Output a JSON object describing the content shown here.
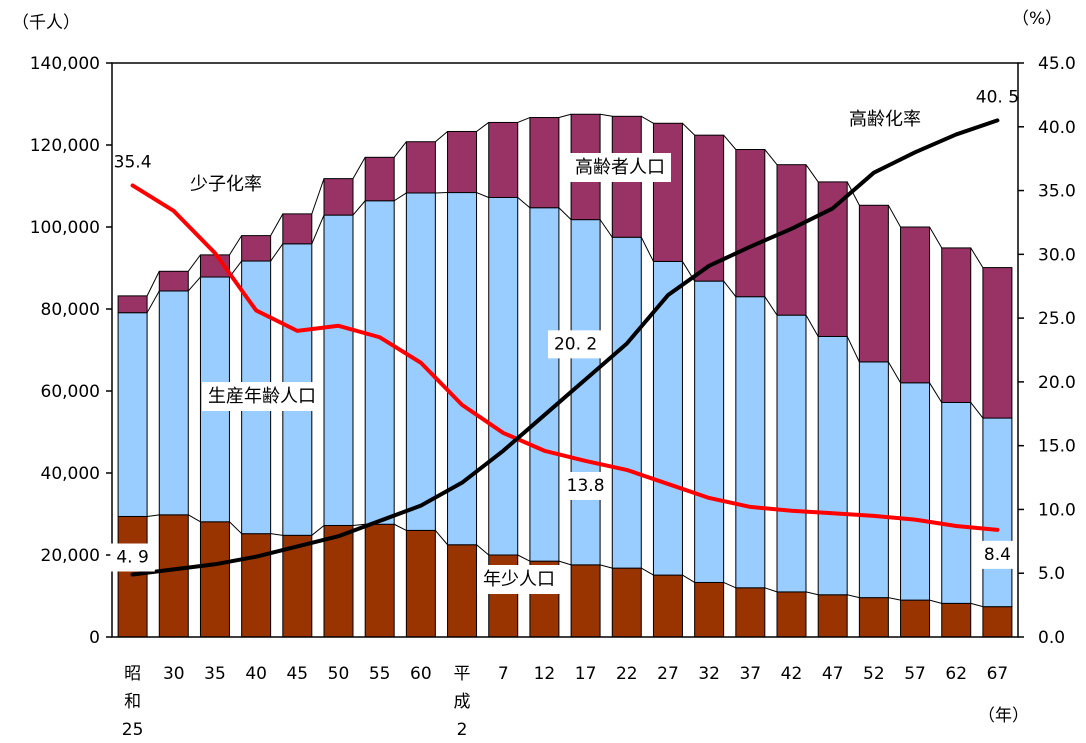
{
  "chart_data": {
    "type": "bar",
    "stacked": true,
    "left_axis": {
      "unit": "（千人）",
      "ylim": [
        0,
        140000
      ],
      "ticks": [
        "0",
        "20,000",
        "40,000",
        "60,000",
        "80,000",
        "100,000",
        "120,000",
        "140,000"
      ]
    },
    "right_axis": {
      "unit": "（%）",
      "ylim": [
        0,
        45
      ],
      "ticks": [
        "0.0",
        "5.0",
        "10.0",
        "15.0",
        "20.0",
        "25.0",
        "30.0",
        "35.0",
        "40.0",
        "45.0"
      ]
    },
    "x_unit": "（年）",
    "categories": [
      [
        "昭",
        "和",
        "25"
      ],
      [
        "30"
      ],
      [
        "35"
      ],
      [
        "40"
      ],
      [
        "45"
      ],
      [
        "50"
      ],
      [
        "55"
      ],
      [
        "60"
      ],
      [
        "平",
        "成",
        "2"
      ],
      [
        "7"
      ],
      [
        "12"
      ],
      [
        "17"
      ],
      [
        "22"
      ],
      [
        "27"
      ],
      [
        "32"
      ],
      [
        "37"
      ],
      [
        "42"
      ],
      [
        "47"
      ],
      [
        "52"
      ],
      [
        "57"
      ],
      [
        "62"
      ],
      [
        "67"
      ]
    ],
    "series": [
      {
        "name": "年少人口",
        "kind": "bar",
        "color": "#993300",
        "values": [
          29400,
          29800,
          28100,
          25200,
          24800,
          27200,
          27500,
          26000,
          22500,
          20000,
          18500,
          17600,
          16800,
          15100,
          13300,
          12000,
          11000,
          10300,
          9600,
          9000,
          8200,
          7400
        ]
      },
      {
        "name": "生産年齢人口",
        "kind": "bar",
        "color": "#99CCFF",
        "values": [
          49700,
          54600,
          59700,
          66500,
          71100,
          75700,
          78900,
          82300,
          85900,
          87200,
          86200,
          84200,
          80700,
          76500,
          73500,
          71000,
          67500,
          63000,
          57500,
          53000,
          49000,
          46000
        ]
      },
      {
        "name": "高齢者人口",
        "kind": "bar",
        "color": "#993366",
        "values": [
          4100,
          4800,
          5400,
          6200,
          7300,
          8900,
          10600,
          12500,
          14900,
          18300,
          22000,
          25700,
          29500,
          33700,
          35600,
          35900,
          36700,
          37700,
          38200,
          38000,
          37700,
          36700
        ]
      },
      {
        "name": "少子化率",
        "kind": "line",
        "axis": "right",
        "color": "#FF0000",
        "values": [
          35.4,
          33.4,
          30.1,
          25.6,
          24.0,
          24.4,
          23.5,
          21.5,
          18.2,
          16.0,
          14.6,
          13.8,
          13.1,
          12.0,
          10.9,
          10.2,
          9.9,
          9.7,
          9.5,
          9.2,
          8.7,
          8.4
        ]
      },
      {
        "name": "高齢化率",
        "kind": "line",
        "axis": "right",
        "color": "#000000",
        "values": [
          4.9,
          5.3,
          5.7,
          6.3,
          7.1,
          7.9,
          9.1,
          10.3,
          12.1,
          14.6,
          17.4,
          20.2,
          23.0,
          26.8,
          29.1,
          30.6,
          32.0,
          33.6,
          36.4,
          38.0,
          39.4,
          40.5
        ]
      }
    ],
    "data_labels": [
      {
        "text": "35.4",
        "series": "少子化率",
        "index": 0,
        "anchor": "above"
      },
      {
        "text": "4. 9",
        "series": "高齢化率",
        "index": 0,
        "anchor": "above"
      },
      {
        "text": "40. 5",
        "series": "高齢化率",
        "index": 21,
        "anchor": "above"
      },
      {
        "text": "13.8",
        "series": "少子化率",
        "index": 11,
        "anchor": "below"
      },
      {
        "text": "20. 2",
        "series": "高齢化率",
        "index": 11,
        "anchor": "above-left"
      },
      {
        "text": "8.4",
        "series": "少子化率",
        "index": 21,
        "anchor": "below"
      }
    ],
    "series_labels": [
      {
        "text": "高齢化率",
        "series": "高齢化率"
      },
      {
        "text": "少子化率",
        "series": "少子化率"
      },
      {
        "text": "高齢者人口",
        "series": "高齢者人口"
      },
      {
        "text": "生産年齢人口",
        "series": "生産年齢人口"
      },
      {
        "text": "年少人口",
        "series": "年少人口"
      }
    ]
  }
}
